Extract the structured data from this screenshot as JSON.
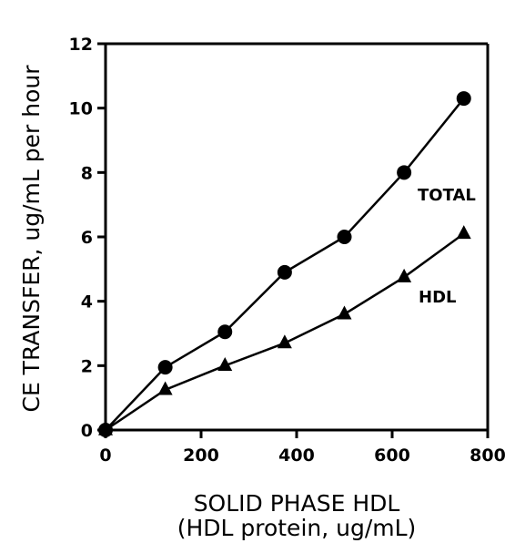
{
  "chart_data": {
    "type": "line",
    "xlabel": "SOLID PHASE HDL",
    "xlabel_sub": "(HDL protein, ug/mL)",
    "ylabel": "CE TRANSFER, ug/mL per hour",
    "xlim": [
      0,
      800
    ],
    "ylim": [
      0,
      12
    ],
    "xticks": [
      0,
      200,
      400,
      600,
      800
    ],
    "yticks": [
      0,
      2,
      4,
      6,
      8,
      10,
      12
    ],
    "grid": false,
    "series": [
      {
        "name": "TOTAL",
        "marker": "circle",
        "x": [
          0,
          125,
          250,
          375,
          500,
          625,
          750
        ],
        "y": [
          0,
          1.95,
          3.05,
          4.9,
          6.0,
          8.0,
          10.3
        ]
      },
      {
        "name": "HDL",
        "marker": "triangle",
        "x": [
          0,
          125,
          250,
          375,
          500,
          625,
          750
        ],
        "y": [
          0,
          1.25,
          2.0,
          2.7,
          3.6,
          4.75,
          6.1
        ]
      }
    ]
  }
}
